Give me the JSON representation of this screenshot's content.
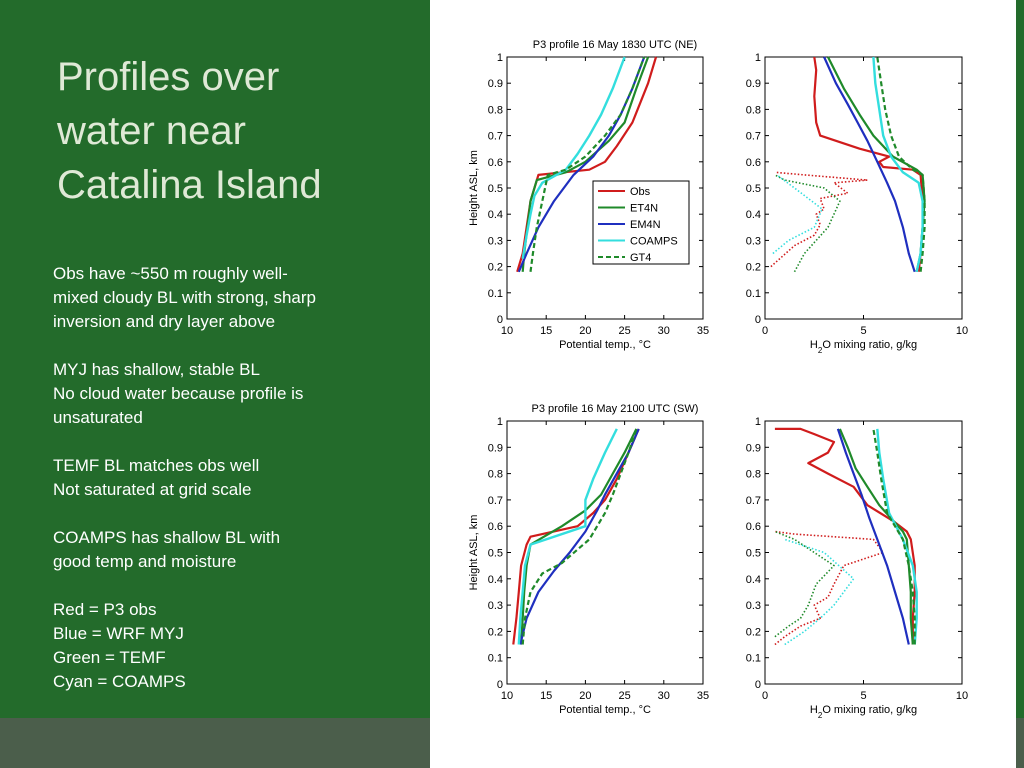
{
  "slide": {
    "title_lines": [
      "Profiles over",
      "water near",
      "Catalina Island"
    ],
    "paragraphs": [
      [
        "Obs have ~550 m roughly well-",
        "mixed cloudy BL with strong, sharp",
        "inversion and dry layer above"
      ],
      [
        "MYJ has shallow, stable BL",
        "No cloud water because profile is",
        "unsaturated"
      ],
      [
        "TEMF BL matches obs well",
        "Not saturated at grid scale"
      ],
      [
        "COAMPS has shallow BL with",
        "good temp and moisture"
      ],
      [
        "Red = P3 obs",
        "Blue = WRF MYJ",
        "Green = TEMF",
        "Cyan = COAMPS"
      ]
    ]
  },
  "colors": {
    "obs": "#d01c1c",
    "et4n": "#1f8a2a",
    "em4n": "#1f2fbf",
    "coamps": "#33dede",
    "gt4": "#1f8a2a",
    "background_green": "#236b2b"
  },
  "chart_data": [
    {
      "type": "line",
      "title": "P3 profile 16 May 1830 UTC (NE)",
      "xlabel": "Potential temp., °C",
      "ylabel": "Height ASL, km",
      "xlim": [
        10,
        35
      ],
      "ylim": [
        0,
        1
      ],
      "xticks": [
        10,
        15,
        20,
        25,
        30,
        35
      ],
      "yticks": [
        0,
        0.1,
        0.2,
        0.3,
        0.4,
        0.5,
        0.6,
        0.7,
        0.8,
        0.9,
        1
      ],
      "legend": {
        "placement": "lower-right",
        "entries": [
          "Obs",
          "ET4N",
          "EM4N",
          "COAMPS",
          "GT4"
        ]
      },
      "series": [
        {
          "name": "Obs",
          "x": [
            11.3,
            12.0,
            12.5,
            13.0,
            14.0,
            20.5,
            22.5,
            24.0,
            26.0,
            28.0,
            29.0
          ],
          "y": [
            0.18,
            0.25,
            0.35,
            0.45,
            0.55,
            0.57,
            0.6,
            0.66,
            0.75,
            0.9,
            1.0
          ]
        },
        {
          "name": "ET4N",
          "x": [
            12.0,
            12.2,
            12.6,
            13.0,
            13.8,
            17.5,
            20.0,
            23.0,
            25.0,
            26.5,
            28.0
          ],
          "y": [
            0.18,
            0.25,
            0.35,
            0.45,
            0.53,
            0.56,
            0.6,
            0.68,
            0.75,
            0.88,
            1.0
          ]
        },
        {
          "name": "EM4N",
          "x": [
            11.5,
            12.5,
            14.0,
            16.0,
            18.5,
            21.0,
            23.0,
            24.5,
            26.0,
            27.5
          ],
          "y": [
            0.18,
            0.25,
            0.35,
            0.45,
            0.55,
            0.62,
            0.7,
            0.78,
            0.88,
            1.0
          ]
        },
        {
          "name": "COAMPS",
          "x": [
            12.0,
            12.5,
            13.0,
            13.5,
            14.5,
            17.5,
            19.0,
            20.5,
            22.0,
            23.5,
            25.0
          ],
          "y": [
            0.23,
            0.32,
            0.4,
            0.47,
            0.52,
            0.57,
            0.63,
            0.7,
            0.78,
            0.88,
            1.0
          ]
        },
        {
          "name": "GT4",
          "x": [
            13.0,
            13.3,
            13.8,
            14.5,
            15.2,
            17.5,
            20.0,
            22.5,
            24.5,
            26.0,
            27.5
          ],
          "y": [
            0.18,
            0.25,
            0.35,
            0.45,
            0.55,
            0.57,
            0.62,
            0.7,
            0.78,
            0.88,
            1.0
          ]
        }
      ]
    },
    {
      "type": "line",
      "title": "",
      "xlabel": "H2O mixing ratio, g/kg",
      "ylabel": "",
      "xlim": [
        0,
        10
      ],
      "ylim": [
        0,
        1
      ],
      "xticks": [
        0,
        5,
        10
      ],
      "yticks": [
        0,
        0.1,
        0.2,
        0.3,
        0.4,
        0.5,
        0.6,
        0.7,
        0.8,
        0.9,
        1
      ],
      "series": [
        {
          "name": "Obs",
          "x": [
            7.8,
            7.9,
            8.0,
            8.0,
            7.9,
            7.5,
            6.0,
            5.8,
            6.3,
            4.8,
            2.8,
            2.6,
            2.5,
            2.6,
            2.5
          ],
          "y": [
            0.18,
            0.25,
            0.35,
            0.45,
            0.55,
            0.57,
            0.58,
            0.6,
            0.62,
            0.65,
            0.7,
            0.75,
            0.85,
            0.95,
            1.0
          ]
        },
        {
          "name": "ET4N",
          "x": [
            7.7,
            7.9,
            8.0,
            8.1,
            8.0,
            7.7,
            6.5,
            5.5,
            4.8,
            4.0,
            3.2
          ],
          "y": [
            0.18,
            0.25,
            0.35,
            0.45,
            0.55,
            0.57,
            0.62,
            0.7,
            0.78,
            0.88,
            1.0
          ]
        },
        {
          "name": "EM4N",
          "x": [
            7.6,
            7.3,
            7.0,
            6.6,
            6.2,
            5.7,
            5.2,
            4.7,
            4.2,
            3.6,
            3.0
          ],
          "y": [
            0.18,
            0.25,
            0.35,
            0.45,
            0.52,
            0.6,
            0.68,
            0.75,
            0.82,
            0.9,
            1.0
          ]
        },
        {
          "name": "COAMPS",
          "x": [
            7.7,
            7.9,
            8.0,
            8.0,
            7.8,
            7.0,
            6.4,
            6.0,
            5.8,
            5.6,
            5.5
          ],
          "y": [
            0.18,
            0.25,
            0.35,
            0.45,
            0.52,
            0.56,
            0.62,
            0.7,
            0.8,
            0.9,
            1.0
          ]
        },
        {
          "name": "GT4",
          "x": [
            7.9,
            8.0,
            8.1,
            8.1,
            8.0,
            7.5,
            6.8,
            6.4,
            6.1,
            5.9,
            5.7
          ],
          "y": [
            0.18,
            0.25,
            0.35,
            0.45,
            0.55,
            0.57,
            0.62,
            0.7,
            0.8,
            0.9,
            1.0
          ]
        },
        {
          "name": "Obs (dotted)",
          "x": [
            0.3,
            1.5,
            2.5,
            2.8,
            2.6,
            3.0,
            2.8,
            4.2,
            3.5,
            5.2,
            2.0,
            0.5
          ],
          "y": [
            0.2,
            0.28,
            0.32,
            0.36,
            0.4,
            0.42,
            0.46,
            0.48,
            0.52,
            0.53,
            0.55,
            0.56
          ]
        },
        {
          "name": "GT4 (dotted)",
          "x": [
            1.5,
            2.0,
            3.2,
            3.8,
            3.0,
            1.0,
            0.5
          ],
          "y": [
            0.18,
            0.25,
            0.35,
            0.45,
            0.5,
            0.53,
            0.55
          ]
        },
        {
          "name": "COAMPS (dotted)",
          "x": [
            0.4,
            1.2,
            2.5,
            2.9,
            1.5,
            0.6
          ],
          "y": [
            0.25,
            0.3,
            0.35,
            0.42,
            0.5,
            0.55
          ]
        }
      ]
    },
    {
      "type": "line",
      "title": "P3 profile 16 May 2100 UTC (SW)",
      "xlabel": "Potential temp., °C",
      "ylabel": "Height ASL, km",
      "xlim": [
        10,
        35
      ],
      "ylim": [
        0,
        1
      ],
      "xticks": [
        10,
        15,
        20,
        25,
        30,
        35
      ],
      "yticks": [
        0,
        0.1,
        0.2,
        0.3,
        0.4,
        0.5,
        0.6,
        0.7,
        0.8,
        0.9,
        1
      ],
      "series": [
        {
          "name": "Obs",
          "x": [
            10.8,
            11.2,
            11.5,
            11.8,
            12.5,
            13.0,
            19.0,
            21.0,
            22.5,
            24.0,
            25.5,
            26.8
          ],
          "y": [
            0.15,
            0.25,
            0.35,
            0.45,
            0.53,
            0.56,
            0.6,
            0.65,
            0.7,
            0.78,
            0.88,
            0.97
          ]
        },
        {
          "name": "ET4N",
          "x": [
            11.8,
            12.0,
            12.2,
            12.5,
            13.0,
            17.0,
            20.0,
            22.0,
            23.5,
            25.0,
            26.5
          ],
          "y": [
            0.15,
            0.25,
            0.35,
            0.45,
            0.53,
            0.6,
            0.66,
            0.72,
            0.8,
            0.88,
            0.97
          ]
        },
        {
          "name": "EM4N",
          "x": [
            11.7,
            12.5,
            14.0,
            16.0,
            18.0,
            20.0,
            21.5,
            22.5,
            24.0,
            25.5,
            26.8
          ],
          "y": [
            0.15,
            0.25,
            0.35,
            0.43,
            0.5,
            0.58,
            0.66,
            0.72,
            0.8,
            0.88,
            0.97
          ]
        },
        {
          "name": "COAMPS",
          "x": [
            11.5,
            11.7,
            12.0,
            12.3,
            13.0,
            20.0,
            20.0,
            21.0,
            22.5,
            24.0
          ],
          "y": [
            0.15,
            0.25,
            0.35,
            0.45,
            0.53,
            0.6,
            0.7,
            0.78,
            0.88,
            0.97
          ]
        },
        {
          "name": "GT4",
          "x": [
            12.0,
            12.3,
            13.0,
            14.5,
            17.0,
            20.5,
            22.5,
            23.5,
            24.5,
            25.5,
            26.5
          ],
          "y": [
            0.15,
            0.25,
            0.35,
            0.42,
            0.46,
            0.55,
            0.65,
            0.72,
            0.8,
            0.88,
            0.97
          ]
        }
      ]
    },
    {
      "type": "line",
      "title": "",
      "xlabel": "H2O mixing ratio, g/kg",
      "ylabel": "",
      "xlim": [
        0,
        10
      ],
      "ylim": [
        0,
        1
      ],
      "xticks": [
        0,
        5,
        10
      ],
      "yticks": [
        0,
        0.1,
        0.2,
        0.3,
        0.4,
        0.5,
        0.6,
        0.7,
        0.8,
        0.9,
        1
      ],
      "series": [
        {
          "name": "Obs",
          "x": [
            7.5,
            7.5,
            7.6,
            7.6,
            7.4,
            7.2,
            6.5,
            5.2,
            4.5,
            3.2,
            2.2,
            3.2,
            3.5,
            2.5,
            1.8,
            0.5
          ],
          "y": [
            0.15,
            0.25,
            0.35,
            0.45,
            0.55,
            0.58,
            0.62,
            0.68,
            0.75,
            0.8,
            0.84,
            0.88,
            0.92,
            0.95,
            0.97,
            0.97
          ]
        },
        {
          "name": "ET4N",
          "x": [
            7.5,
            7.4,
            7.4,
            7.3,
            7.2,
            7.0,
            5.8,
            5.2,
            4.6,
            4.2,
            3.8
          ],
          "y": [
            0.15,
            0.25,
            0.35,
            0.45,
            0.55,
            0.58,
            0.68,
            0.75,
            0.82,
            0.9,
            0.97
          ]
        },
        {
          "name": "EM4N",
          "x": [
            7.3,
            7.0,
            6.6,
            6.2,
            5.7,
            5.3,
            4.9,
            4.5,
            4.1,
            3.7
          ],
          "y": [
            0.15,
            0.25,
            0.35,
            0.45,
            0.55,
            0.63,
            0.72,
            0.8,
            0.88,
            0.97
          ]
        },
        {
          "name": "COAMPS",
          "x": [
            7.6,
            7.7,
            7.7,
            7.5,
            7.0,
            6.3,
            6.0,
            5.8,
            5.7
          ],
          "y": [
            0.15,
            0.25,
            0.35,
            0.45,
            0.55,
            0.65,
            0.78,
            0.88,
            0.97
          ]
        },
        {
          "name": "GT4",
          "x": [
            7.6,
            7.6,
            7.5,
            7.3,
            7.0,
            6.2,
            5.9,
            5.7,
            5.5
          ],
          "y": [
            0.15,
            0.25,
            0.35,
            0.45,
            0.55,
            0.65,
            0.78,
            0.88,
            0.97
          ]
        },
        {
          "name": "Obs (dotted)",
          "x": [
            0.5,
            1.0,
            1.8,
            2.8,
            2.5,
            3.2,
            3.5,
            4.0,
            6.0,
            5.5,
            1.5,
            0.5
          ],
          "y": [
            0.15,
            0.18,
            0.22,
            0.25,
            0.3,
            0.33,
            0.38,
            0.45,
            0.5,
            0.55,
            0.57,
            0.58
          ]
        },
        {
          "name": "GT4 (dotted)",
          "x": [
            0.5,
            1.2,
            1.8,
            2.2,
            2.6,
            3.5,
            1.5,
            0.5
          ],
          "y": [
            0.18,
            0.22,
            0.25,
            0.3,
            0.38,
            0.45,
            0.55,
            0.58
          ]
        },
        {
          "name": "COAMPS (dotted)",
          "x": [
            1.0,
            2.0,
            2.8,
            3.5,
            4.5,
            3.0,
            1.0
          ],
          "y": [
            0.15,
            0.2,
            0.25,
            0.3,
            0.4,
            0.5,
            0.55
          ]
        }
      ]
    }
  ]
}
